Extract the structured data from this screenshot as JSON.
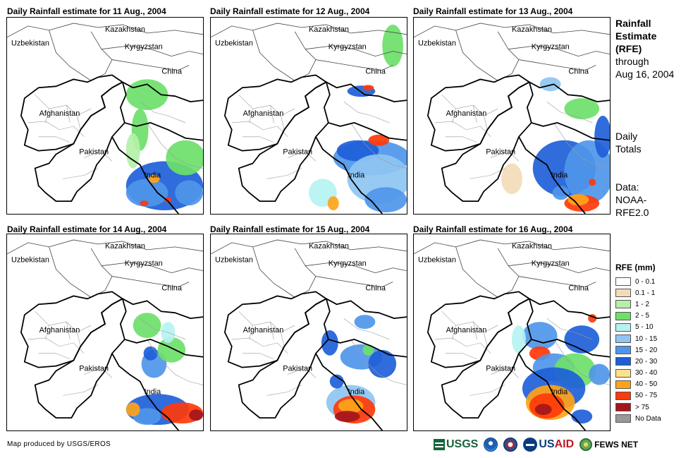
{
  "panels": [
    {
      "title": "Daily Rainfall estimate for 11 Aug., 2004",
      "day": "11"
    },
    {
      "title": "Daily Rainfall estimate for 12 Aug., 2004",
      "day": "12"
    },
    {
      "title": "Daily Rainfall estimate for 13 Aug., 2004",
      "day": "13"
    },
    {
      "title": "Daily Rainfall estimate for 14 Aug., 2004",
      "day": "14"
    },
    {
      "title": "Daily Rainfall estimate for 15 Aug., 2004",
      "day": "15"
    },
    {
      "title": "Daily Rainfall estimate for 16 Aug., 2004",
      "day": "16"
    }
  ],
  "map_labels": {
    "kazakhstan": "Kazakhstan",
    "uzbekistan": "Uzbekistan",
    "kyrgyzstan": "Kyrgyzstan",
    "china": "China",
    "afghanistan": "Afghanistan",
    "pakistan": "Pakistan",
    "india": "India"
  },
  "side": {
    "title_line1": "Rainfall",
    "title_line2": "Estimate",
    "title_line3": "(RFE)",
    "through": "through",
    "date": "Aug 16, 2004",
    "daily_line1": "Daily",
    "daily_line2": "Totals",
    "data_line1": "Data:",
    "data_line2": "NOAA-",
    "data_line3": "RFE2.0"
  },
  "legend": {
    "title": "RFE (mm)",
    "items": [
      {
        "label": "0 - 0.1",
        "color": "#ffffff"
      },
      {
        "label": "0.1 - 1",
        "color": "#f2dcb8"
      },
      {
        "label": "1 - 2",
        "color": "#b4f0a8"
      },
      {
        "label": "2 - 5",
        "color": "#6ee06a"
      },
      {
        "label": "5 - 10",
        "color": "#b6f2f2"
      },
      {
        "label": "10 - 15",
        "color": "#8ec6f2"
      },
      {
        "label": "15 - 20",
        "color": "#4f96ea"
      },
      {
        "label": "20 - 30",
        "color": "#1e5fd8"
      },
      {
        "label": "30 - 40",
        "color": "#fde28a"
      },
      {
        "label": "40 - 50",
        "color": "#ffa41a"
      },
      {
        "label": "50 - 75",
        "color": "#ff3a0a"
      },
      {
        "label": "> 75",
        "color": "#a4161c"
      },
      {
        "label": "No Data",
        "color": "#999999"
      }
    ]
  },
  "footer": {
    "credit": "Map produced by USGS/EROS",
    "usgs": "USGS",
    "usaid_us": "US",
    "usaid_aid": "AID",
    "fews": "FEWS NET"
  }
}
